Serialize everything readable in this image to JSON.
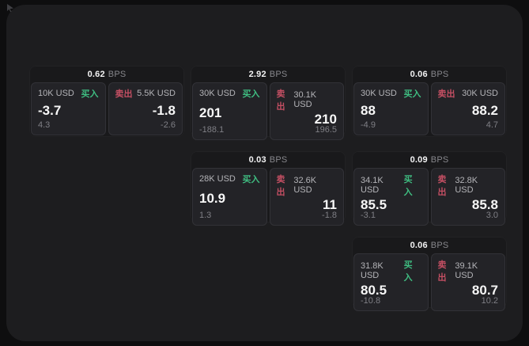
{
  "labels": {
    "bps": "BPS",
    "buy": "买入",
    "sell": "卖出"
  },
  "colors": {
    "buy_green": "#3fbd81",
    "sell_red": "#c44f63",
    "panel_bg": "#1d1d1f",
    "card_bg": "#19191b",
    "subpanel_bg": "#232327"
  },
  "cards": [
    {
      "row": 1,
      "col": 1,
      "bps": "0.62",
      "buy": {
        "amount": "10K USD",
        "main": "-3.7",
        "sub": "4.3"
      },
      "sell": {
        "amount": "5.5K USD",
        "main": "-1.8",
        "sub": "-2.6"
      }
    },
    {
      "row": 1,
      "col": 2,
      "bps": "2.92",
      "buy": {
        "amount": "30K USD",
        "main": "201",
        "sub": "-188.1"
      },
      "sell": {
        "amount": "30.1K USD",
        "main": "210",
        "sub": "196.5"
      }
    },
    {
      "row": 1,
      "col": 3,
      "bps": "0.06",
      "buy": {
        "amount": "30K USD",
        "main": "88",
        "sub": "-4.9"
      },
      "sell": {
        "amount": "30K USD",
        "main": "88.2",
        "sub": "4.7"
      }
    },
    {
      "row": 2,
      "col": 2,
      "bps": "0.03",
      "buy": {
        "amount": "28K USD",
        "main": "10.9",
        "sub": "1.3"
      },
      "sell": {
        "amount": "32.6K USD",
        "main": "11",
        "sub": "-1.8"
      }
    },
    {
      "row": 2,
      "col": 3,
      "bps": "0.09",
      "buy": {
        "amount": "34.1K USD",
        "main": "85.5",
        "sub": "-3.1"
      },
      "sell": {
        "amount": "32.8K USD",
        "main": "85.8",
        "sub": "3.0"
      }
    },
    {
      "row": 3,
      "col": 3,
      "bps": "0.06",
      "buy": {
        "amount": "31.8K USD",
        "main": "80.5",
        "sub": "-10.8"
      },
      "sell": {
        "amount": "39.1K USD",
        "main": "80.7",
        "sub": "10.2"
      }
    }
  ]
}
